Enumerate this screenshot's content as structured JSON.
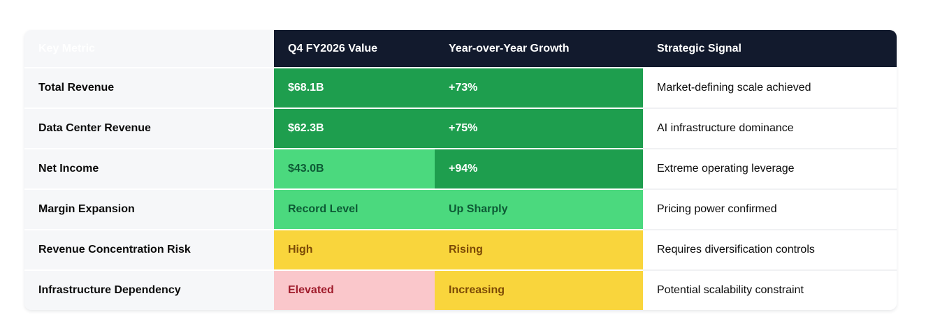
{
  "chart_data": {
    "type": "table",
    "columns": [
      "Key Metric",
      "Q4 FY2026 Value",
      "Year-over-Year Growth",
      "Strategic Signal"
    ],
    "rows": [
      [
        "Total Revenue",
        "$68.1B",
        "+73%",
        "Market-defining scale achieved"
      ],
      [
        "Data Center Revenue",
        "$62.3B",
        "+75%",
        "AI infrastructure dominance"
      ],
      [
        "Net Income",
        "$43.0B",
        "+94%",
        "Extreme operating leverage"
      ],
      [
        "Margin Expansion",
        "Record Level",
        "Up Sharply",
        "Pricing power confirmed"
      ],
      [
        "Revenue Concentration Risk",
        "High",
        "Rising",
        "Requires diversification controls"
      ],
      [
        "Infrastructure Dependency",
        "Elevated",
        "Increasing",
        "Potential scalability constraint"
      ]
    ],
    "cell_styles": [
      [
        null,
        "green_dark",
        "green_dark",
        null
      ],
      [
        null,
        "green_dark",
        "green_dark",
        null
      ],
      [
        null,
        "green_light",
        "green_dark",
        null
      ],
      [
        null,
        "green_light",
        "green_light",
        null
      ],
      [
        null,
        "yellow",
        "yellow",
        null
      ],
      [
        null,
        "pink",
        "yellow",
        null
      ]
    ],
    "title": "",
    "legend_position": "none",
    "grid": false
  },
  "colors": {
    "header_bg": "#121a2d",
    "header_text": "#ffffff",
    "first_col_bg": "#f6f7f9",
    "green_dark": "#1e9e4e",
    "green_dark_text": "#ffffff",
    "green_light": "#4bd97e",
    "green_light_text": "#0d5a35",
    "yellow": "#f9d53c",
    "yellow_text": "#7c4a06",
    "pink": "#fac7cb",
    "pink_text": "#a01c2c",
    "signal_border": "#f0f1f3"
  }
}
